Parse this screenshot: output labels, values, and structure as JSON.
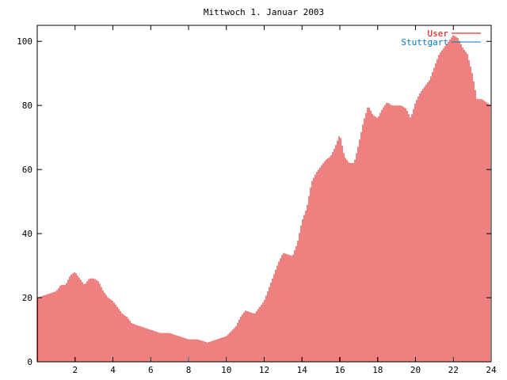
{
  "chart_data": {
    "type": "bar",
    "title": "Mittwoch 1. Januar 2003",
    "xlabel": "",
    "ylabel": "",
    "xlim": [
      0,
      24
    ],
    "ylim": [
      0,
      105
    ],
    "x_ticks": [
      "2",
      "4",
      "6",
      "8",
      "10",
      "12",
      "14",
      "16",
      "18",
      "20",
      "22",
      "24"
    ],
    "y_ticks": [
      "0",
      "20",
      "40",
      "60",
      "80",
      "100"
    ],
    "grid": false,
    "legend_position": "top-right",
    "bar_color": "#dd0000",
    "series": [
      {
        "name": "User",
        "color": "#dd0000",
        "points": [
          [
            0.0,
            20
          ],
          [
            0.5,
            21
          ],
          [
            1.0,
            22
          ],
          [
            1.25,
            24
          ],
          [
            1.5,
            24
          ],
          [
            1.75,
            27
          ],
          [
            2.0,
            28
          ],
          [
            2.25,
            26
          ],
          [
            2.5,
            24
          ],
          [
            2.75,
            26
          ],
          [
            3.0,
            26
          ],
          [
            3.25,
            25
          ],
          [
            3.5,
            22
          ],
          [
            3.75,
            20
          ],
          [
            4.0,
            19
          ],
          [
            4.25,
            17
          ],
          [
            4.5,
            15
          ],
          [
            4.75,
            14
          ],
          [
            5.0,
            12
          ],
          [
            5.5,
            11
          ],
          [
            6.0,
            10
          ],
          [
            6.5,
            9
          ],
          [
            7.0,
            9
          ],
          [
            7.5,
            8
          ],
          [
            8.0,
            7
          ],
          [
            8.5,
            7
          ],
          [
            9.0,
            6
          ],
          [
            9.5,
            7
          ],
          [
            10.0,
            8
          ],
          [
            10.5,
            11
          ],
          [
            10.75,
            14
          ],
          [
            11.0,
            16
          ],
          [
            11.5,
            15
          ],
          [
            11.75,
            17
          ],
          [
            12.0,
            19
          ],
          [
            12.5,
            27
          ],
          [
            12.75,
            31
          ],
          [
            13.0,
            34
          ],
          [
            13.5,
            33
          ],
          [
            13.75,
            37
          ],
          [
            14.0,
            44
          ],
          [
            14.25,
            48
          ],
          [
            14.5,
            56
          ],
          [
            14.75,
            59
          ],
          [
            15.0,
            61
          ],
          [
            15.25,
            63
          ],
          [
            15.5,
            64
          ],
          [
            15.75,
            67
          ],
          [
            16.0,
            71
          ],
          [
            16.25,
            64
          ],
          [
            16.5,
            62
          ],
          [
            16.75,
            62
          ],
          [
            17.0,
            68
          ],
          [
            17.25,
            75
          ],
          [
            17.5,
            80
          ],
          [
            17.75,
            77
          ],
          [
            18.0,
            76
          ],
          [
            18.25,
            79
          ],
          [
            18.5,
            81
          ],
          [
            18.75,
            80
          ],
          [
            19.0,
            80
          ],
          [
            19.25,
            80
          ],
          [
            19.5,
            79
          ],
          [
            19.75,
            76
          ],
          [
            20.0,
            81
          ],
          [
            20.25,
            84
          ],
          [
            20.5,
            86
          ],
          [
            20.75,
            88
          ],
          [
            21.0,
            92
          ],
          [
            21.25,
            96
          ],
          [
            21.5,
            98
          ],
          [
            21.75,
            100
          ],
          [
            22.0,
            102
          ],
          [
            22.25,
            101
          ],
          [
            22.5,
            98
          ],
          [
            22.75,
            96
          ],
          [
            23.0,
            90
          ],
          [
            23.25,
            82
          ],
          [
            23.5,
            82
          ],
          [
            23.75,
            81
          ],
          [
            24.0,
            80
          ]
        ]
      },
      {
        "name": "Stuttgart",
        "color": "#0077bb",
        "points": []
      }
    ]
  }
}
